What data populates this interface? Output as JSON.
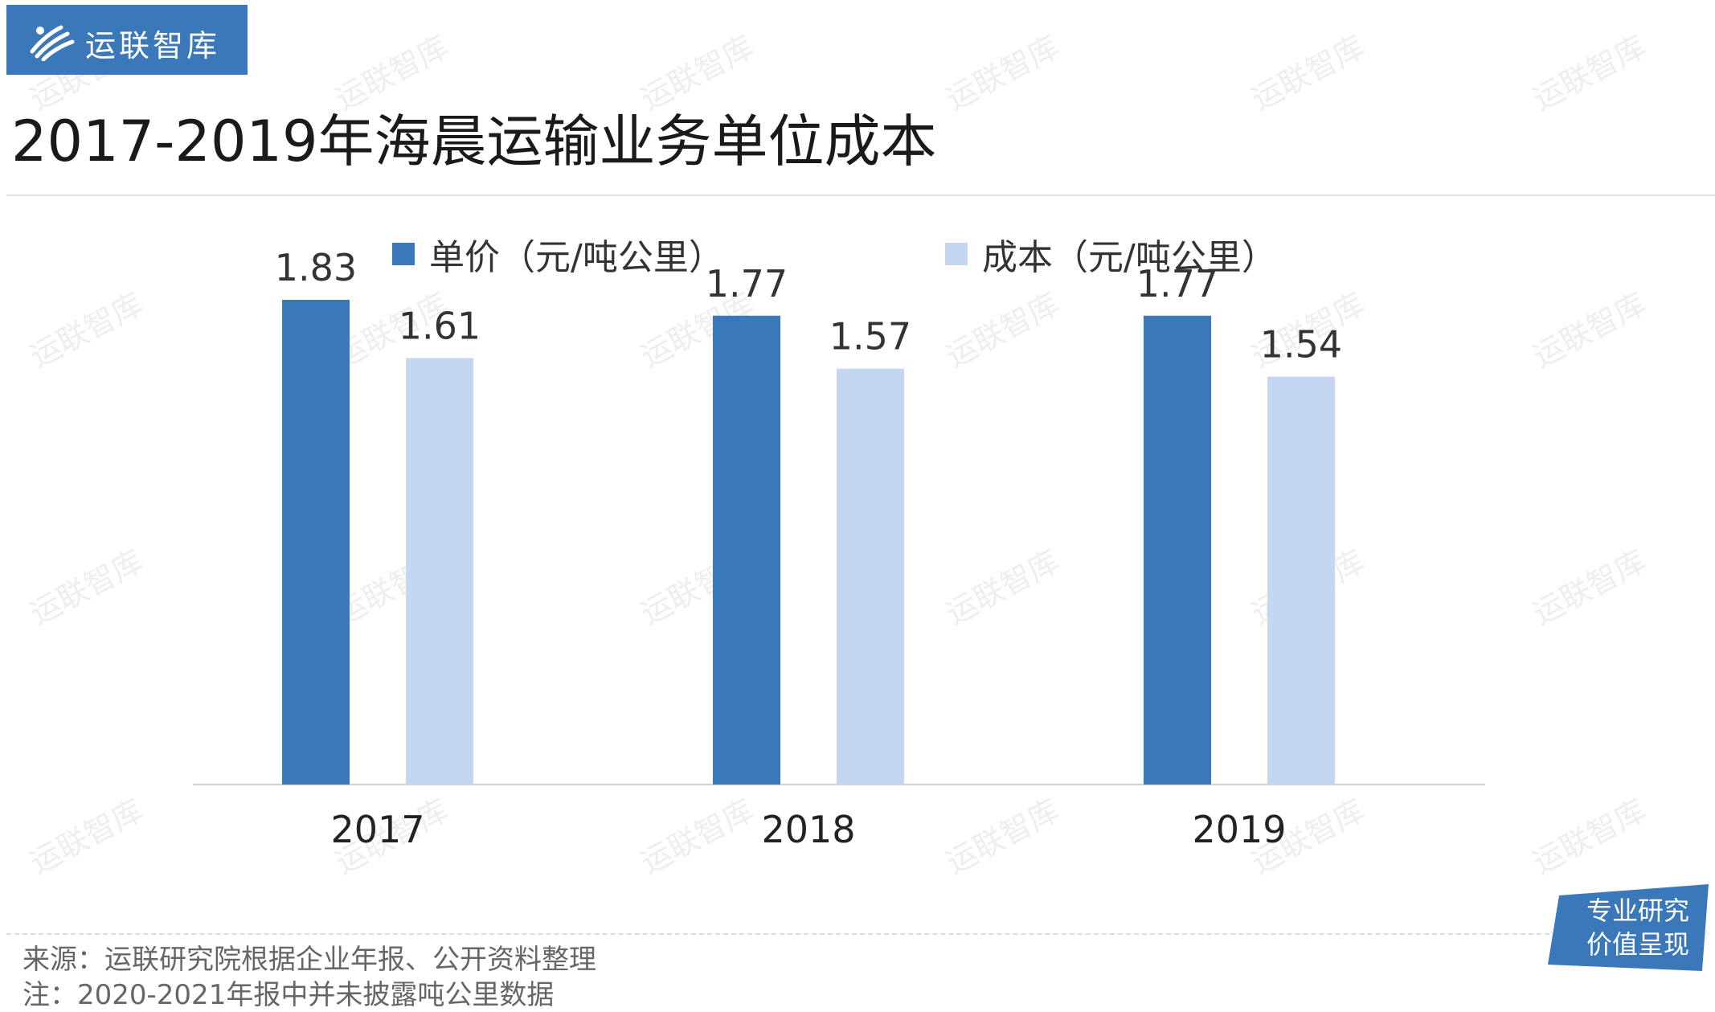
{
  "brand": {
    "name": "运联智库",
    "color": "#3b78b9"
  },
  "title": "2017-2019年海晨运输业务单位成本",
  "legend": [
    {
      "label": "单价（元/吨公里）",
      "color": "#3b78b9"
    },
    {
      "label": "成本（元/吨公里）",
      "color": "#c5d6f0"
    }
  ],
  "chart_data": {
    "type": "bar",
    "title": "2017-2019年海晨运输业务单位成本",
    "categories": [
      "2017",
      "2018",
      "2019"
    ],
    "series": [
      {
        "name": "单价（元/吨公里）",
        "values": [
          1.83,
          1.77,
          1.77
        ],
        "color": "#3b78b9"
      },
      {
        "name": "成本（元/吨公里）",
        "values": [
          1.61,
          1.57,
          1.54
        ],
        "color": "#c5d6f0"
      }
    ],
    "xlabel": "",
    "ylabel": "",
    "ylim": [
      0,
      1.83
    ],
    "grid": false,
    "legend_position": "top"
  },
  "footer": {
    "source": "来源：运联研究院根据企业年报、公开资料整理",
    "note": "注：2020-2021年报中并未披露吨公里数据"
  },
  "badge": {
    "line1": "专业研究",
    "line2": "价值呈现",
    "color": "#3b78b9"
  },
  "watermark": "运联智库"
}
